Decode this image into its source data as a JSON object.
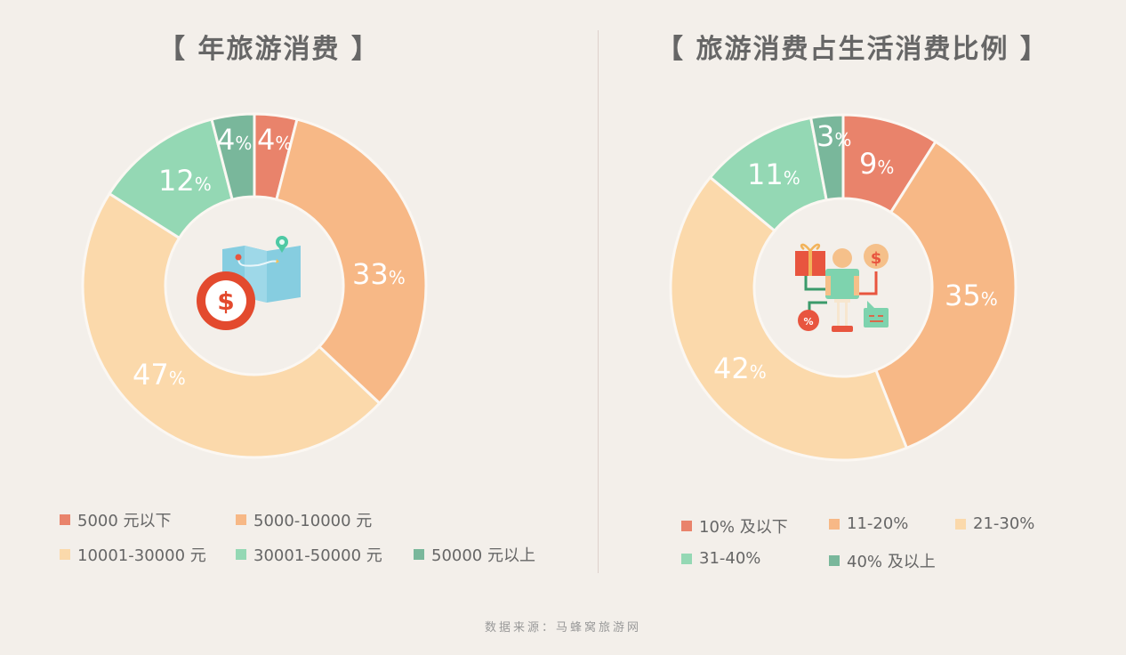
{
  "left_chart": {
    "title": "【 年旅游消费 】",
    "center_icon": "map-money-icon",
    "labels": [
      {
        "text": "4",
        "sign": "%"
      },
      {
        "text": "33",
        "sign": "%"
      },
      {
        "text": "47",
        "sign": "%"
      },
      {
        "text": "12",
        "sign": "%"
      },
      {
        "text": "4",
        "sign": "%"
      }
    ],
    "legend": [
      {
        "label": "5000 元以下",
        "color": "#e9836b"
      },
      {
        "label": "5000-10000 元",
        "color": "#f7b886"
      },
      {
        "label": "10001-30000 元",
        "color": "#fbd9ab"
      },
      {
        "label": "30001-50000 元",
        "color": "#94d8b4"
      },
      {
        "label": "50000 元以上",
        "color": "#79b79b"
      }
    ]
  },
  "right_chart": {
    "title": "【 旅游消费占生活消费比例 】",
    "center_icon": "person-shopping-icon",
    "labels": [
      {
        "text": "9",
        "sign": "%"
      },
      {
        "text": "35",
        "sign": "%"
      },
      {
        "text": "42",
        "sign": "%"
      },
      {
        "text": "11",
        "sign": "%"
      },
      {
        "text": "3",
        "sign": "%"
      }
    ],
    "legend": [
      {
        "label": "10% 及以下",
        "color": "#e9836b"
      },
      {
        "label": "11-20%",
        "color": "#f7b886"
      },
      {
        "label": "21-30%",
        "color": "#fbd9ab"
      },
      {
        "label": "31-40%",
        "color": "#94d8b4"
      },
      {
        "label": "40% 及以上",
        "color": "#79b79b"
      }
    ]
  },
  "source": "数据来源：马蜂窝旅游网",
  "chart_data": [
    {
      "type": "pie",
      "title": "【 年旅游消费 】",
      "categories": [
        "5000 元以下",
        "5000-10000 元",
        "10001-30000 元",
        "30001-50000 元",
        "50000 元以上"
      ],
      "values": [
        4,
        33,
        47,
        12,
        4
      ],
      "colors": [
        "#e9836b",
        "#f7b886",
        "#fbd9ab",
        "#94d8b4",
        "#79b79b"
      ],
      "donut": true,
      "legend_position": "bottom"
    },
    {
      "type": "pie",
      "title": "【 旅游消费占生活消费比例 】",
      "categories": [
        "10% 及以下",
        "11-20%",
        "21-30%",
        "31-40%",
        "40% 及以上"
      ],
      "values": [
        9,
        35,
        42,
        11,
        3
      ],
      "colors": [
        "#e9836b",
        "#f7b886",
        "#fbd9ab",
        "#94d8b4",
        "#79b79b"
      ],
      "donut": true,
      "legend_position": "bottom"
    }
  ]
}
